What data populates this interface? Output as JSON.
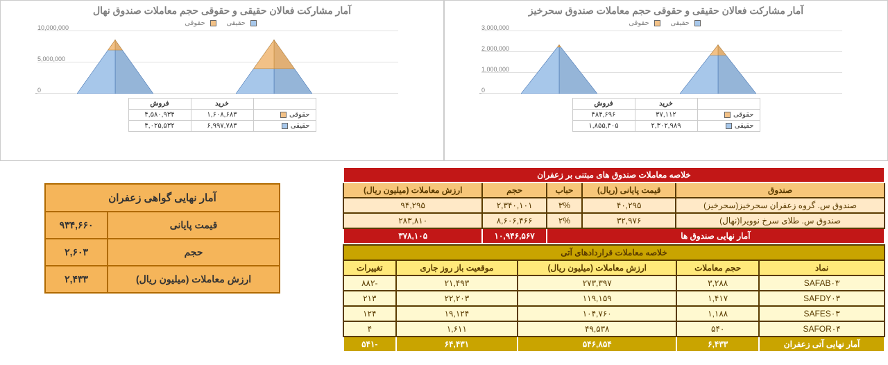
{
  "charts": [
    {
      "title": "آمار مشارکت فعالان حقیقی و حقوقی حجم معاملات صندوق سحرخیز",
      "legend": {
        "legal": "حقوقی",
        "real": "حقیقی"
      },
      "colors": {
        "legal_fill": "#f2c187",
        "legal_stroke": "#c58a3c",
        "real_fill": "#a7c7ea",
        "real_stroke": "#4a78b5"
      },
      "ymax": 3000000,
      "yticks": [
        "0",
        "1,000,000",
        "2,000,000",
        "3,000,000"
      ],
      "groups": [
        {
          "label": "خرید",
          "legal": 37112,
          "real": 2302989
        },
        {
          "label": "فروش",
          "legal": 484696,
          "real": 1855405
        }
      ],
      "mini_rows": [
        {
          "name": "حقوقی",
          "color": "#f2c187",
          "buy": "۳۷,۱۱۲",
          "sell": "۴۸۴,۶۹۶"
        },
        {
          "name": "حقیقی",
          "color": "#a7c7ea",
          "buy": "۲,۳۰۲,۹۸۹",
          "sell": "۱,۸۵۵,۴۰۵"
        }
      ]
    },
    {
      "title": "آمار مشارکت فعالان حقیقی و حقوقی حجم معاملات صندوق نهال",
      "legend": {
        "legal": "حقوقی",
        "real": "حقیقی"
      },
      "colors": {
        "legal_fill": "#f2c187",
        "legal_stroke": "#c58a3c",
        "real_fill": "#a7c7ea",
        "real_stroke": "#4a78b5"
      },
      "ymax": 10000000,
      "yticks": [
        "0",
        "5,000,000",
        "10,000,000"
      ],
      "groups": [
        {
          "label": "خرید",
          "legal": 1608683,
          "real": 6997783
        },
        {
          "label": "فروش",
          "legal": 4580934,
          "real": 4025532
        }
      ],
      "mini_rows": [
        {
          "name": "حقوقی",
          "color": "#f2c187",
          "buy": "۱,۶۰۸,۶۸۳",
          "sell": "۴,۵۸۰,۹۳۴"
        },
        {
          "name": "حقیقی",
          "color": "#a7c7ea",
          "buy": "۶,۹۹۷,۷۸۳",
          "sell": "۴,۰۲۵,۵۳۲"
        }
      ]
    }
  ],
  "funds": {
    "title": "خلاصه معاملات صندوق های مبتنی بر زعفران",
    "headers": [
      "صندوق",
      "قیمت پایانی (ریال)",
      "حباب",
      "حجم",
      "ارزش معاملات (میلیون ریال)"
    ],
    "rows": [
      [
        "صندوق س. گروه زعفران سحرخیز(سحرخیز)",
        "۴۰,۲۹۵",
        "۳%",
        "۲,۳۴۰,۱۰۱",
        "۹۴,۲۹۵"
      ],
      [
        "صندوق س. طلای سرخ نوویرا(نهال)",
        "۳۲,۹۷۶",
        "۲%",
        "۸,۶۰۶,۴۶۶",
        "۲۸۳,۸۱۰"
      ]
    ],
    "total_label": "آمار نهایی صندوق ها",
    "total": [
      "۱۰,۹۴۶,۵۶۷",
      "۳۷۸,۱۰۵"
    ]
  },
  "futures": {
    "title": "خلاصه معاملات قراردادهای آتی",
    "headers": [
      "نماد",
      "حجم معاملات",
      "ارزش معاملات (میلیون ریال)",
      "موقعیت باز روز جاری",
      "تغییرات"
    ],
    "rows": [
      [
        "SAFAB۰۳",
        "۳,۲۸۸",
        "۲۷۳,۳۹۷",
        "۲۱,۴۹۳",
        "-۸۸۲"
      ],
      [
        "SAFDY۰۳",
        "۱,۴۱۷",
        "۱۱۹,۱۵۹",
        "۲۲,۲۰۳",
        "۲۱۳"
      ],
      [
        "SAFES۰۳",
        "۱,۱۸۸",
        "۱۰۴,۷۶۰",
        "۱۹,۱۲۴",
        "۱۲۴"
      ],
      [
        "SAFOR۰۴",
        "۵۴۰",
        "۴۹,۵۳۸",
        "۱,۶۱۱",
        "۴"
      ]
    ],
    "total_label": "آمار نهایی آتی زعفران",
    "total": [
      "۶,۴۳۳",
      "۵۴۶,۸۵۴",
      "۶۴,۴۳۱",
      "-۵۴۱"
    ]
  },
  "cert": {
    "title": "آمار نهایی گواهی زعفران",
    "rows": [
      [
        "قیمت پایانی",
        "۹۳۴,۶۶۰"
      ],
      [
        "حجم",
        "۲,۶۰۳"
      ],
      [
        "ارزش معاملات (میلیون ریال)",
        "۲,۴۳۳"
      ]
    ]
  }
}
